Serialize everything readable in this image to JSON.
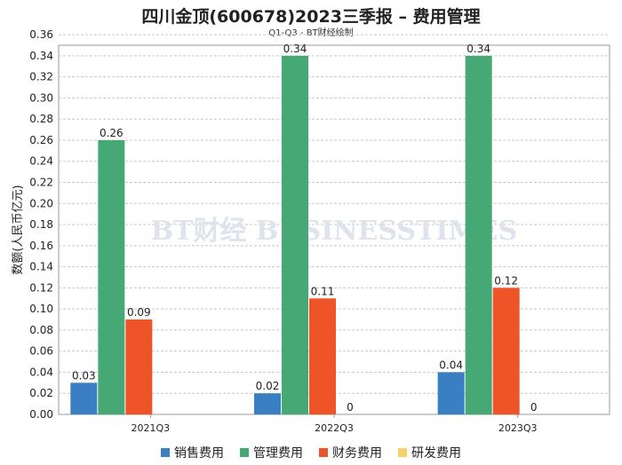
{
  "chart_data": {
    "type": "bar",
    "title": "四川金顶(600678)2023三季报 – 费用管理",
    "subtitle": "Q1-Q3 - BT财经绘制",
    "ylabel": "数额(人民币亿元)",
    "xlabel": "",
    "categories": [
      "2021Q3",
      "2022Q3",
      "2023Q3"
    ],
    "ylim": [
      0,
      0.35
    ],
    "ytick_step": 0.02,
    "grid": true,
    "legend_position": "bottom",
    "watermark": "BT财经 BUSINESSTIMES",
    "series": [
      {
        "name": "销售费用",
        "color": "#3a7fc1",
        "values": [
          0.03,
          0.02,
          0.04
        ],
        "labels": [
          "0.03",
          "0.02",
          "0.04"
        ]
      },
      {
        "name": "管理费用",
        "color": "#46a874",
        "values": [
          0.26,
          0.34,
          0.34
        ],
        "labels": [
          "0.26",
          "0.34",
          "0.34"
        ]
      },
      {
        "name": "财务费用",
        "color": "#ef5428",
        "values": [
          0.09,
          0.11,
          0.12
        ],
        "labels": [
          "0.09",
          "0.11",
          "0.12"
        ]
      },
      {
        "name": "研发费用",
        "color": "#f2d36b",
        "values": [
          null,
          0,
          0
        ],
        "labels": [
          "",
          "0",
          "0"
        ]
      }
    ]
  }
}
